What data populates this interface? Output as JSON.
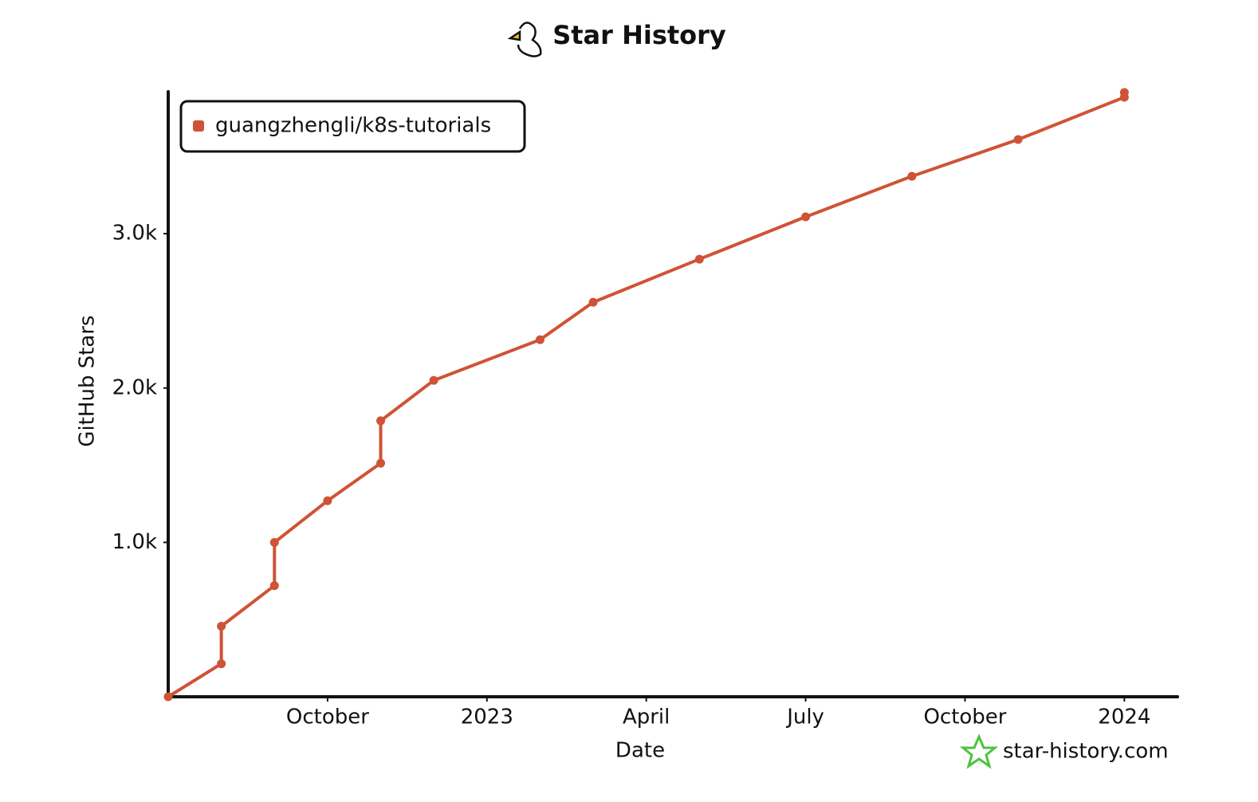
{
  "chart_data": {
    "type": "line",
    "title": "Star History",
    "x_label": "Date",
    "y_label": "GitHub Stars",
    "x": [
      "2022-07",
      "2022-08",
      "2022-08",
      "2022-09",
      "2022-09",
      "2022-10",
      "2022-11",
      "2022-11",
      "2022-12",
      "2023-02",
      "2023-03",
      "2023-05",
      "2023-07",
      "2023-09",
      "2023-11",
      "2024-01",
      "2024-01"
    ],
    "series": [
      {
        "name": "guangzhengli/k8s-tutorials",
        "color": "#cf5336",
        "values": [
          0,
          214,
          457,
          720,
          1000,
          1270,
          1513,
          1788,
          2050,
          2313,
          2556,
          2835,
          3109,
          3372,
          3610,
          3884,
          3915
        ]
      }
    ],
    "xlim": [
      "2022-07",
      "2024-02"
    ],
    "xticks": [
      {
        "value": "2022-10",
        "label": "October"
      },
      {
        "value": "2023-01",
        "label": "2023"
      },
      {
        "value": "2023-04",
        "label": "April"
      },
      {
        "value": "2023-07",
        "label": "July"
      },
      {
        "value": "2023-10",
        "label": "October"
      },
      {
        "value": "2024-01",
        "label": "2024"
      }
    ],
    "ylim": [
      0,
      3920
    ],
    "yticks": [
      {
        "value": 1000,
        "label": "1.0k"
      },
      {
        "value": 2000,
        "label": "2.0k"
      },
      {
        "value": 3000,
        "label": "3.0k"
      }
    ],
    "grid": false,
    "legend": "top-left",
    "watermark": "star-history.com"
  }
}
